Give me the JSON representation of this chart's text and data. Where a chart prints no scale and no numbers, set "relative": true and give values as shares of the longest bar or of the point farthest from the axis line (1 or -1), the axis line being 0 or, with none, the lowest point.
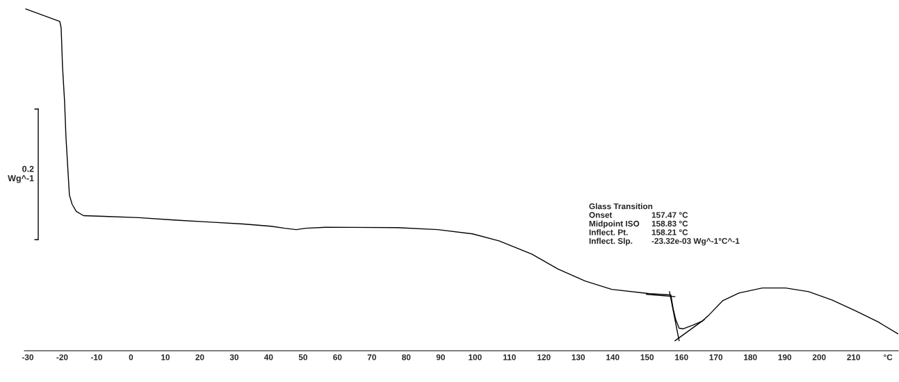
{
  "chart_data": {
    "type": "line",
    "relative": true,
    "tick_labels": "x",
    "grid": false,
    "legend": false,
    "xlim": [
      -31,
      223
    ],
    "xticks": [
      -30,
      -20,
      -10,
      0,
      10,
      20,
      30,
      40,
      50,
      60,
      70,
      80,
      90,
      100,
      110,
      120,
      130,
      140,
      150,
      160,
      170,
      180,
      190,
      200,
      210,
      {
        "value": 220,
        "label": "°C"
      }
    ],
    "annotations": [
      "0.2\nWg^-1",
      "Glass Transition",
      "Onset\t157.47 °C",
      "Midpoint ISO\t158.83 °C",
      "Inflect. Pt.\t158.21 °C",
      "Inflect. Slp.\t-23.32e-03 Wg^-1°C^-1"
    ],
    "series": [
      {
        "color": "#000000",
        "x": [
          -30.6,
          -20.7,
          -20.3,
          -19.9,
          -19.3,
          -18.9,
          -18.3,
          -17.9,
          -17.1,
          -15.9,
          -13.8,
          -7.8,
          2.3,
          12.4,
          22.5,
          32.6,
          40.7,
          44.7,
          48.0,
          50.8,
          56.5,
          77.5,
          89.2,
          99.3,
          107.0,
          116.5,
          124.1,
          132.0,
          139.7,
          150.6,
          156.9,
          157.5,
          158.3,
          159.3,
          160.5,
          163.3,
          166.0,
          168.0,
          172.0,
          176.7,
          183.5,
          190.2,
          196.9,
          203.7,
          210.4,
          217.1,
          222.9
        ],
        "values": [
          1.0,
          0.962,
          0.943,
          0.826,
          0.72,
          0.614,
          0.508,
          0.439,
          0.411,
          0.39,
          0.377,
          0.375,
          0.371,
          0.364,
          0.358,
          0.352,
          0.345,
          0.339,
          0.335,
          0.339,
          0.342,
          0.341,
          0.335,
          0.322,
          0.301,
          0.261,
          0.216,
          0.18,
          0.155,
          0.142,
          0.138,
          0.1,
          0.064,
          0.038,
          0.036,
          0.047,
          0.059,
          0.078,
          0.121,
          0.144,
          0.159,
          0.159,
          0.148,
          0.123,
          0.091,
          0.057,
          0.021
        ]
      },
      {
        "type": "line",
        "color": "#000000",
        "x": [
          149.8,
          158.1
        ],
        "values": [
          0.14,
          0.133
        ]
      },
      {
        "type": "line",
        "color": "#000000",
        "x": [
          156.5,
          159.3
        ],
        "values": [
          0.148,
          0.0
        ]
      },
      {
        "type": "line",
        "color": "#000000",
        "x": [
          158.1,
          166.6
        ],
        "values": [
          0.0,
          0.064
        ]
      }
    ]
  }
}
